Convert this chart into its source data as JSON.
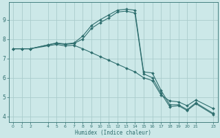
{
  "title": "",
  "xlabel": "Humidex (Indice chaleur)",
  "ylabel": "",
  "bg_color": "#cce8e8",
  "grid_color": "#aacccc",
  "line_color": "#2e6e6e",
  "marker_color": "#2e6e6e",
  "xlim": [
    -0.5,
    23.5
  ],
  "ylim": [
    3.7,
    9.9
  ],
  "xticks": [
    0,
    1,
    2,
    4,
    5,
    6,
    7,
    8,
    9,
    10,
    11,
    12,
    13,
    14,
    15,
    16,
    17,
    18,
    19,
    20,
    21,
    23
  ],
  "xtick_labels": [
    "0",
    "1",
    "2",
    "4",
    "5",
    "6",
    "7",
    "8",
    "9",
    "10",
    "11",
    "12",
    "13",
    "14",
    "15",
    "16",
    "17",
    "18",
    "19",
    "20",
    "21",
    "23"
  ],
  "yticks": [
    4,
    5,
    6,
    7,
    8,
    9
  ],
  "series": [
    {
      "x": [
        0,
        1,
        2,
        4,
        5,
        6,
        7,
        8,
        9,
        10,
        11,
        12,
        13,
        14,
        15,
        16,
        17,
        18,
        19,
        20,
        21,
        23
      ],
      "y": [
        7.5,
        7.5,
        7.5,
        7.7,
        7.8,
        7.75,
        7.8,
        8.15,
        8.7,
        9.0,
        9.25,
        9.5,
        9.55,
        9.5,
        6.3,
        6.25,
        5.35,
        4.6,
        4.6,
        4.35,
        4.7,
        4.15
      ]
    },
    {
      "x": [
        0,
        1,
        2,
        4,
        5,
        6,
        7,
        8,
        9,
        10,
        11,
        12,
        13,
        14,
        15,
        16,
        17,
        18,
        19,
        20,
        21,
        23
      ],
      "y": [
        7.5,
        7.5,
        7.5,
        7.7,
        7.78,
        7.72,
        7.77,
        8.0,
        8.55,
        8.85,
        9.1,
        9.4,
        9.45,
        9.35,
        6.2,
        6.0,
        5.2,
        4.5,
        4.55,
        4.3,
        4.65,
        4.1
      ]
    },
    {
      "x": [
        0,
        1,
        2,
        4,
        5,
        6,
        7,
        8,
        9,
        10,
        11,
        12,
        13,
        14,
        15,
        16,
        17,
        18,
        19,
        20,
        21,
        23
      ],
      "y": [
        7.5,
        7.5,
        7.5,
        7.65,
        7.72,
        7.65,
        7.68,
        7.5,
        7.3,
        7.1,
        6.9,
        6.7,
        6.5,
        6.3,
        6.0,
        5.85,
        5.1,
        4.8,
        4.75,
        4.55,
        4.85,
        4.4
      ]
    }
  ]
}
